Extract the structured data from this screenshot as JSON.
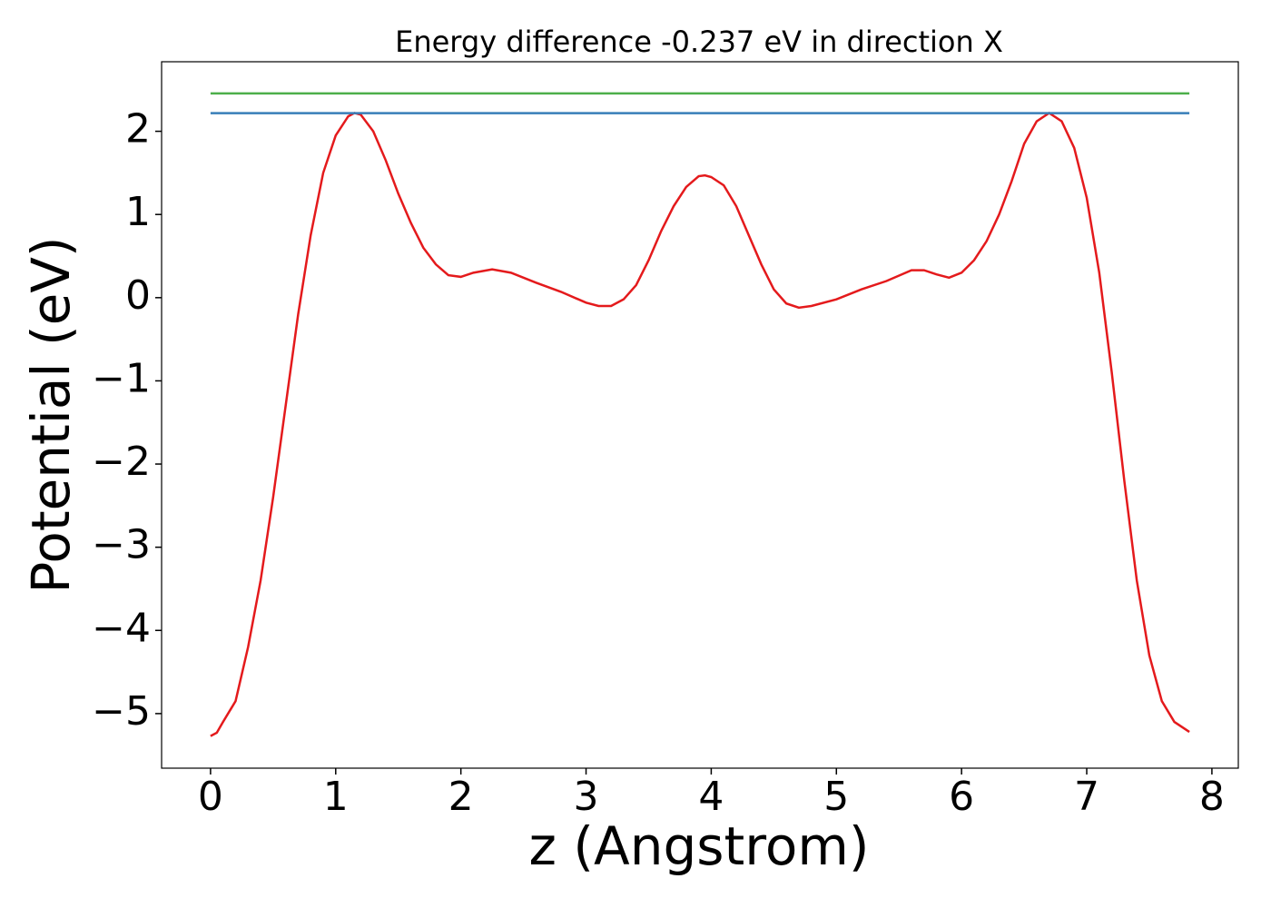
{
  "chart_data": {
    "type": "line",
    "title": "Energy difference -0.237 eV in direction X",
    "xlabel": "z (Angstrom)",
    "ylabel": "Potential (eV)",
    "xlim": [
      -0.391,
      8.211
    ],
    "ylim": [
      -5.656,
      2.836
    ],
    "xticks": [
      0,
      1,
      2,
      3,
      4,
      5,
      6,
      7,
      8
    ],
    "yticks": [
      {
        "value": -5,
        "label": "−5"
      },
      {
        "value": -4,
        "label": "−4"
      },
      {
        "value": -3,
        "label": "−3"
      },
      {
        "value": -2,
        "label": "−2"
      },
      {
        "value": -1,
        "label": "−1"
      },
      0,
      1,
      2
    ],
    "grid": false,
    "series": [
      {
        "color": "#e41a1c",
        "x": [
          0,
          0.05,
          0.1,
          0.2,
          0.3,
          0.4,
          0.5,
          0.6,
          0.7,
          0.8,
          0.9,
          1.0,
          1.1,
          1.15,
          1.2,
          1.3,
          1.4,
          1.5,
          1.6,
          1.7,
          1.8,
          1.9,
          2.0,
          2.1,
          2.25,
          2.4,
          2.6,
          2.8,
          3.0,
          3.1,
          3.2,
          3.3,
          3.4,
          3.5,
          3.6,
          3.7,
          3.8,
          3.9,
          3.95,
          4.0,
          4.1,
          4.2,
          4.3,
          4.4,
          4.5,
          4.6,
          4.7,
          4.8,
          5.0,
          5.2,
          5.4,
          5.6,
          5.7,
          5.8,
          5.9,
          6.0,
          6.1,
          6.2,
          6.3,
          6.4,
          6.5,
          6.6,
          6.7,
          6.8,
          6.9,
          7.0,
          7.1,
          7.2,
          7.3,
          7.4,
          7.5,
          7.6,
          7.7,
          7.82
        ],
        "values": [
          -5.27,
          -5.23,
          -5.1,
          -4.85,
          -4.2,
          -3.4,
          -2.4,
          -1.3,
          -0.2,
          0.75,
          1.5,
          1.95,
          2.18,
          2.22,
          2.2,
          2.0,
          1.65,
          1.25,
          0.9,
          0.6,
          0.4,
          0.27,
          0.25,
          0.3,
          0.34,
          0.3,
          0.18,
          0.07,
          -0.06,
          -0.1,
          -0.1,
          -0.02,
          0.15,
          0.45,
          0.8,
          1.1,
          1.33,
          1.46,
          1.47,
          1.45,
          1.35,
          1.1,
          0.75,
          0.4,
          0.1,
          -0.07,
          -0.12,
          -0.1,
          -0.02,
          0.1,
          0.2,
          0.33,
          0.33,
          0.28,
          0.24,
          0.3,
          0.45,
          0.68,
          1.0,
          1.4,
          1.85,
          2.12,
          2.22,
          2.12,
          1.8,
          1.2,
          0.3,
          -0.9,
          -2.2,
          -3.4,
          -4.3,
          -4.85,
          -5.1,
          -5.22
        ]
      },
      {
        "color": "#377eb8",
        "x": [
          0,
          7.82
        ],
        "values": [
          2.218,
          2.218
        ]
      },
      {
        "color": "#4daf4a",
        "x": [
          0,
          7.82
        ],
        "values": [
          2.455,
          2.455
        ]
      }
    ]
  }
}
